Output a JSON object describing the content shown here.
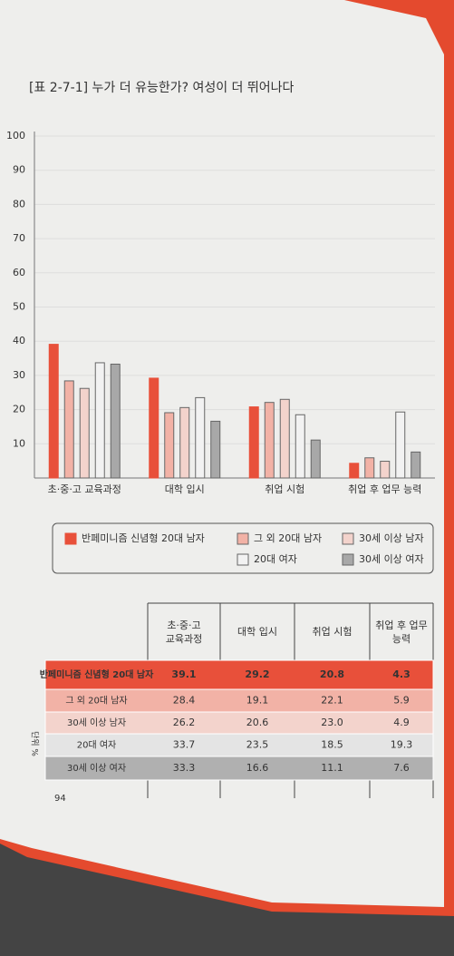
{
  "chart_data": {
    "type": "bar",
    "title": "[표 2-7-1]  누가 더 유능한가? 여성이 더 뛰어나다",
    "categories": [
      "초·중·고 교육과정",
      "대학 입시",
      "취업 시험",
      "취업 후 업무 능력"
    ],
    "series": [
      {
        "name": "반페미니즘 신념형 20대 남자",
        "color": "#e8503a",
        "values": [
          39.1,
          29.2,
          20.8,
          4.3
        ]
      },
      {
        "name": "그 외 20대 남자",
        "color": "#f2b2a6",
        "values": [
          28.4,
          19.1,
          22.1,
          5.9
        ]
      },
      {
        "name": "30세 이상 남자",
        "color": "#f3d3cc",
        "values": [
          26.2,
          20.6,
          23.0,
          4.9
        ],
        "value_labels": [
          "26.2",
          "20.6",
          "23.0",
          "4.9"
        ]
      },
      {
        "name": "20대 여자",
        "color": "#f2f2f2",
        "values": [
          33.7,
          23.5,
          18.5,
          19.3
        ]
      },
      {
        "name": "30세 이상 여자",
        "color": "#a8a8a8",
        "values": [
          33.3,
          16.6,
          11.1,
          7.6
        ]
      }
    ],
    "ylim": [
      0,
      100
    ],
    "yticks": [
      10,
      20,
      30,
      40,
      50,
      60,
      70,
      80,
      90,
      100
    ],
    "grid": true,
    "legend": "bottom"
  },
  "table": {
    "unit": "단위 %"
  },
  "page_number": "94"
}
